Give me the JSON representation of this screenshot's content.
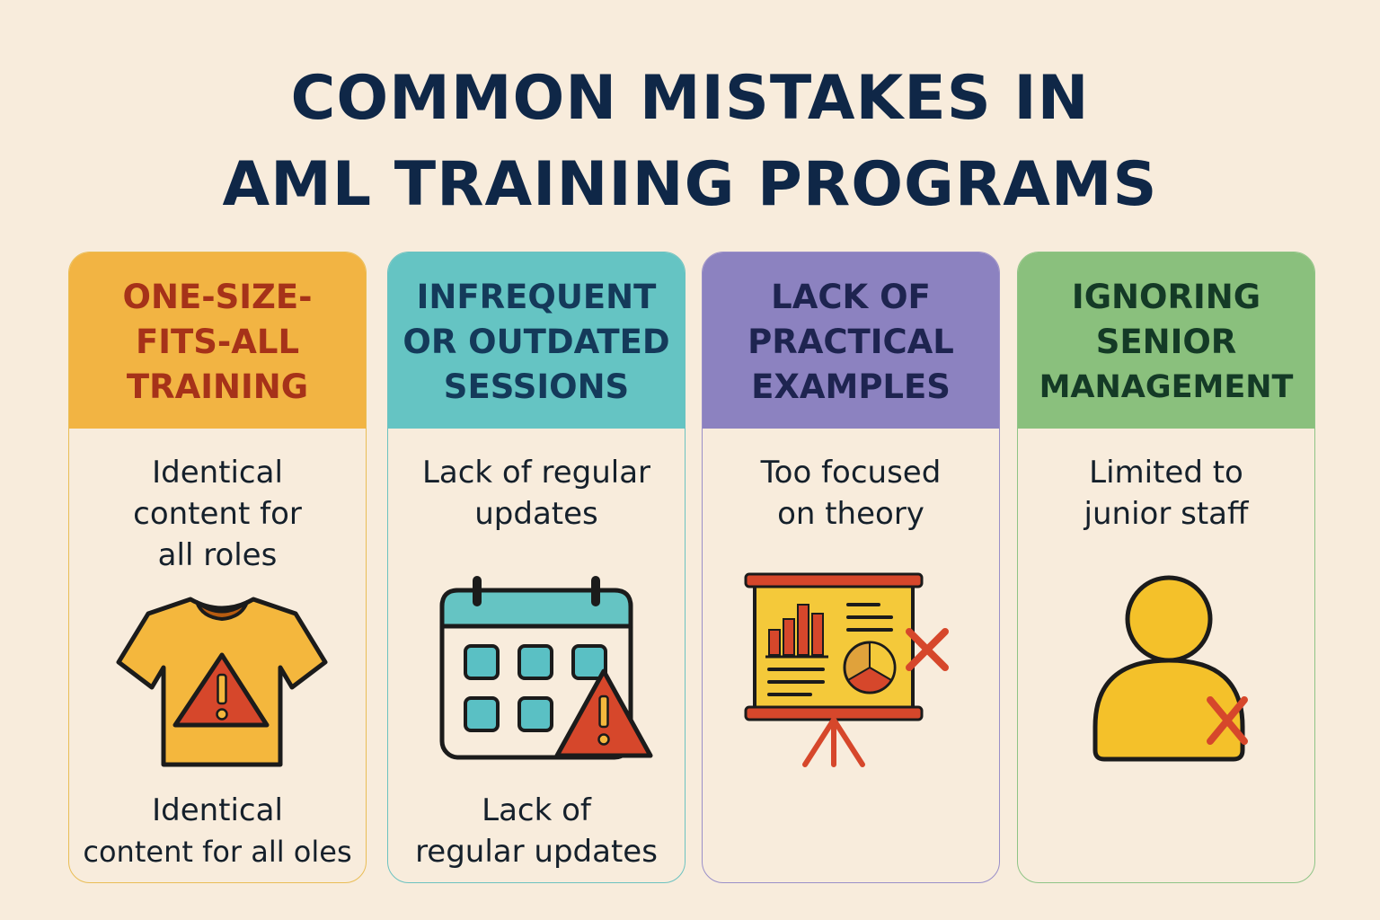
{
  "title": {
    "line1": "COMMON MISTAKES IN",
    "line2": "AML TRAINING PROGRAMS"
  },
  "colors": {
    "background": "#f8ecdc",
    "title": "#0f2747",
    "card1_header": "#f2b443",
    "card1_text": "#a63219",
    "card2_header": "#65c4c3",
    "card2_text": "#143a5a",
    "card3_header": "#8c82c0",
    "card3_text": "#1e2450",
    "card4_header": "#8ac07d",
    "card4_text": "#143a26"
  },
  "cards": [
    {
      "heading": [
        "ONE-SIZE-",
        "FITS-ALL",
        "TRAINING"
      ],
      "description": [
        "Identical",
        "content for",
        "all roles"
      ],
      "icon": "t-shirt-warning-icon",
      "caption": [
        "Identical",
        "content for all oles"
      ]
    },
    {
      "heading": [
        "INFREQUENT",
        "OR OUTDATED",
        "SESSIONS"
      ],
      "description": [
        "Lack of regular",
        "updates"
      ],
      "icon": "calendar-warning-icon",
      "caption": [
        "Lack of",
        "regular updates"
      ]
    },
    {
      "heading": [
        "LACK OF",
        "PRACTICAL",
        "EXAMPLES"
      ],
      "description": [
        "Too focused",
        "on theory"
      ],
      "icon": "presentation-board-x-icon"
    },
    {
      "heading": [
        "IGNORING",
        "SENIOR",
        "MANAGEMENT"
      ],
      "description": [
        "Limited to",
        "junior staff"
      ],
      "icon": "person-x-icon"
    }
  ]
}
